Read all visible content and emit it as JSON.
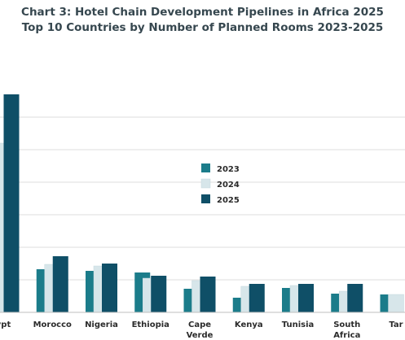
{
  "chart_data": {
    "type": "bar",
    "title": "Chart 3: Hotel Chain Development Pipelines in Africa 2025",
    "subtitle": "Top 10 Countries by Number of Planned Rooms 2023-2025",
    "categories": [
      "Egypt",
      "Morocco",
      "Nigeria",
      "Ethiopia",
      "Cape Verde",
      "Kenya",
      "Tunisia",
      "South Africa",
      "Tanzania"
    ],
    "tick_labels": [
      [
        "ypt"
      ],
      [
        "Morocco"
      ],
      [
        "Nigeria"
      ],
      [
        "Ethiopia"
      ],
      [
        "Cape",
        "Verde"
      ],
      [
        "Kenya"
      ],
      [
        "Tunisia"
      ],
      [
        "South",
        "Africa"
      ],
      [
        "Tar"
      ]
    ],
    "series": [
      {
        "name": "2023",
        "color": "#1b7c8a",
        "values": [
          0,
          26.5,
          25.5,
          24.5,
          14.5,
          9,
          15,
          11.5,
          11
        ]
      },
      {
        "name": "2024",
        "color": "#d7e6ea",
        "values": [
          104,
          29.5,
          28.5,
          21,
          19.5,
          16,
          16.5,
          13,
          11
        ]
      },
      {
        "name": "2025",
        "color": "#0f4f67",
        "values": [
          134,
          34.5,
          30,
          22.5,
          22,
          17.5,
          17.5,
          17.5,
          0
        ]
      }
    ],
    "ylim": [
      0,
      140
    ],
    "gridlines": [
      20,
      40,
      60,
      80,
      100,
      120
    ],
    "grid": true,
    "legend_position": "center-right"
  }
}
